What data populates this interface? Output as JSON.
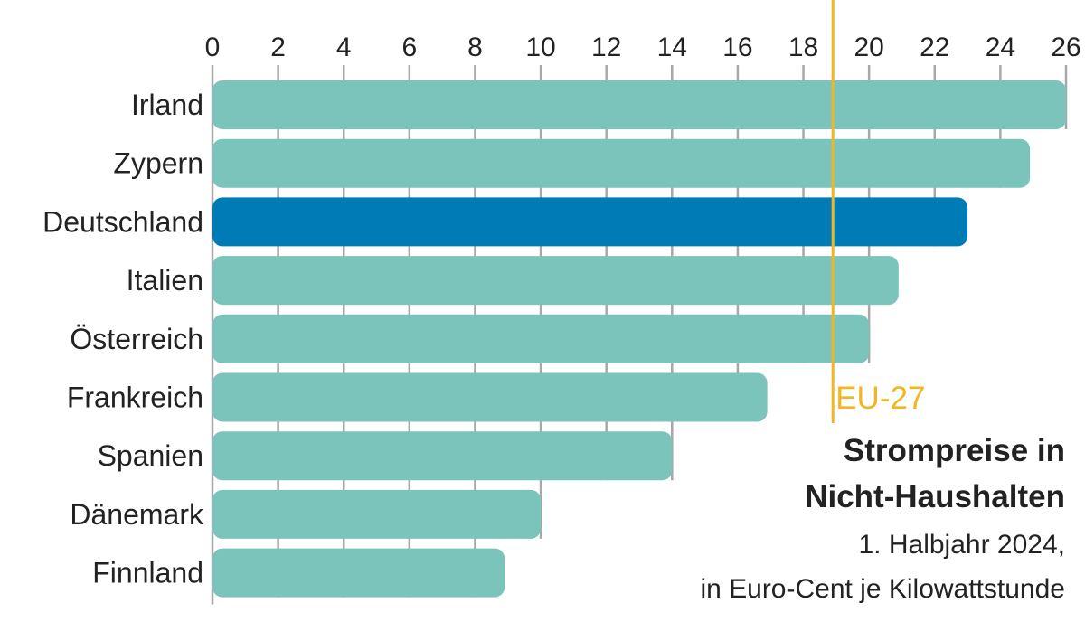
{
  "chart_data": {
    "type": "bar",
    "orientation": "horizontal",
    "title": "Strompreise in Nicht-Haushalten",
    "title_lines": [
      "Strompreise in",
      "Nicht-Haushalten"
    ],
    "subtitle_lines": [
      "1. Halbjahr 2024,",
      "in Euro-Cent je Kilowattstunde"
    ],
    "categories": [
      "Irland",
      "Zypern",
      "Deutschland",
      "Italien",
      "Österreich",
      "Frankreich",
      "Spanien",
      "Dänemark",
      "Finnland"
    ],
    "values": [
      26.0,
      24.9,
      23.0,
      20.9,
      20.0,
      16.9,
      14.0,
      10.0,
      8.9
    ],
    "highlight": "Deutschland",
    "xlim": [
      0,
      26
    ],
    "xticks": [
      0,
      2,
      4,
      6,
      8,
      10,
      12,
      14,
      16,
      18,
      20,
      22,
      24,
      26
    ],
    "grid": true,
    "reference_line": {
      "label": "EU-27",
      "value": 18.9
    },
    "colors": {
      "bar": "#7bc4bb",
      "highlight": "#007bb6",
      "reference": "#f3b61f",
      "grid": "#a8a8a8"
    }
  }
}
